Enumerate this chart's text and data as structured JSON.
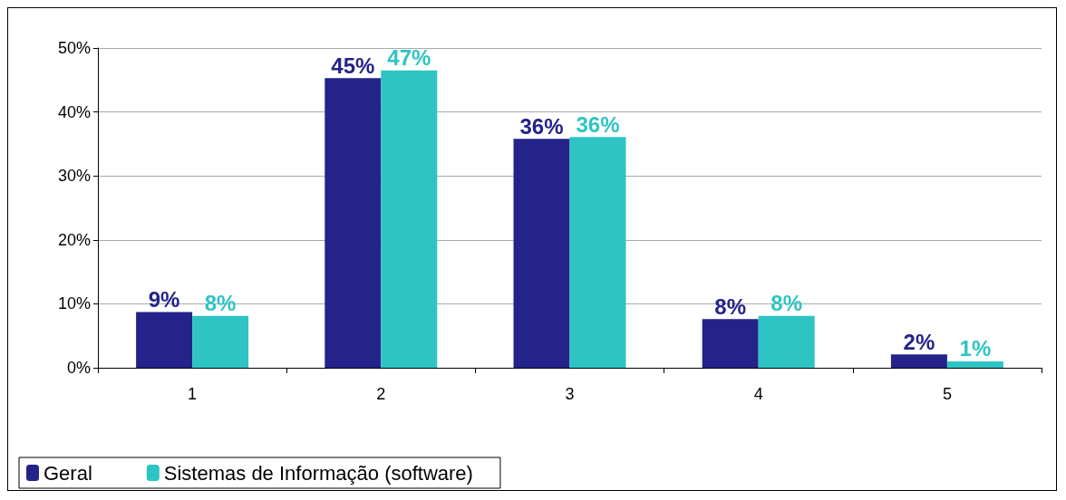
{
  "chart_data": {
    "type": "bar",
    "categories": [
      "1",
      "2",
      "3",
      "4",
      "5"
    ],
    "series": [
      {
        "name": "Geral",
        "color": "#23238a",
        "values": [
          8.7,
          45.3,
          35.8,
          7.6,
          2.1
        ],
        "value_labels": [
          "9%",
          "45%",
          "36%",
          "8%",
          "2%"
        ]
      },
      {
        "name": "Sistemas de Informação (software)",
        "color": "#2ec4c4",
        "values": [
          8.1,
          46.5,
          36.1,
          8.1,
          1.0
        ],
        "value_labels": [
          "8%",
          "47%",
          "36%",
          "8%",
          "1%"
        ]
      }
    ],
    "ylim": [
      0,
      50
    ],
    "yticks": [
      {
        "value": 0,
        "label": "0%"
      },
      {
        "value": 10,
        "label": "10%"
      },
      {
        "value": 20,
        "label": "20%"
      },
      {
        "value": 30,
        "label": "30%"
      },
      {
        "value": 40,
        "label": "40%"
      },
      {
        "value": 50,
        "label": "50%"
      }
    ],
    "grid": "y",
    "legend": "bottom left"
  }
}
